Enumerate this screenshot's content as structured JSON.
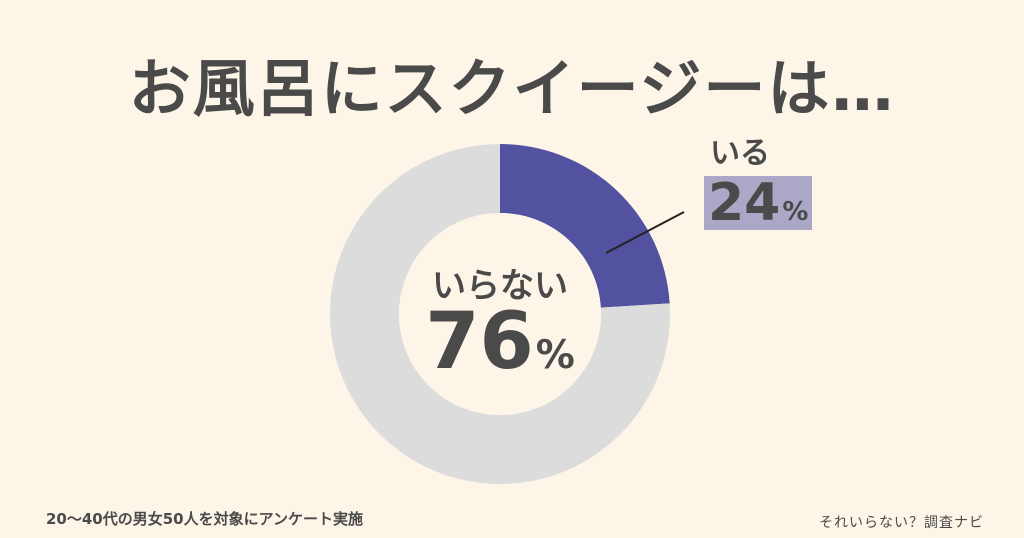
{
  "title": "お風呂にスクイージーは…",
  "chart_data": {
    "type": "pie",
    "title": "お風呂にスクイージーは…",
    "slices": [
      {
        "label": "いる",
        "value": 24,
        "unit": "%",
        "color": "#5252a0"
      },
      {
        "label": "いらない",
        "value": 76,
        "unit": "%",
        "color": "#dcdcdc"
      }
    ],
    "style": "donut"
  },
  "labels": {
    "yes_name": "いる",
    "yes_value": "24",
    "no_name": "いらない",
    "no_value": "76",
    "percent_sign": "%"
  },
  "footnote": "20〜40代の男女50人を対象にアンケート実施",
  "brand": "それいらない？調査ナビ"
}
